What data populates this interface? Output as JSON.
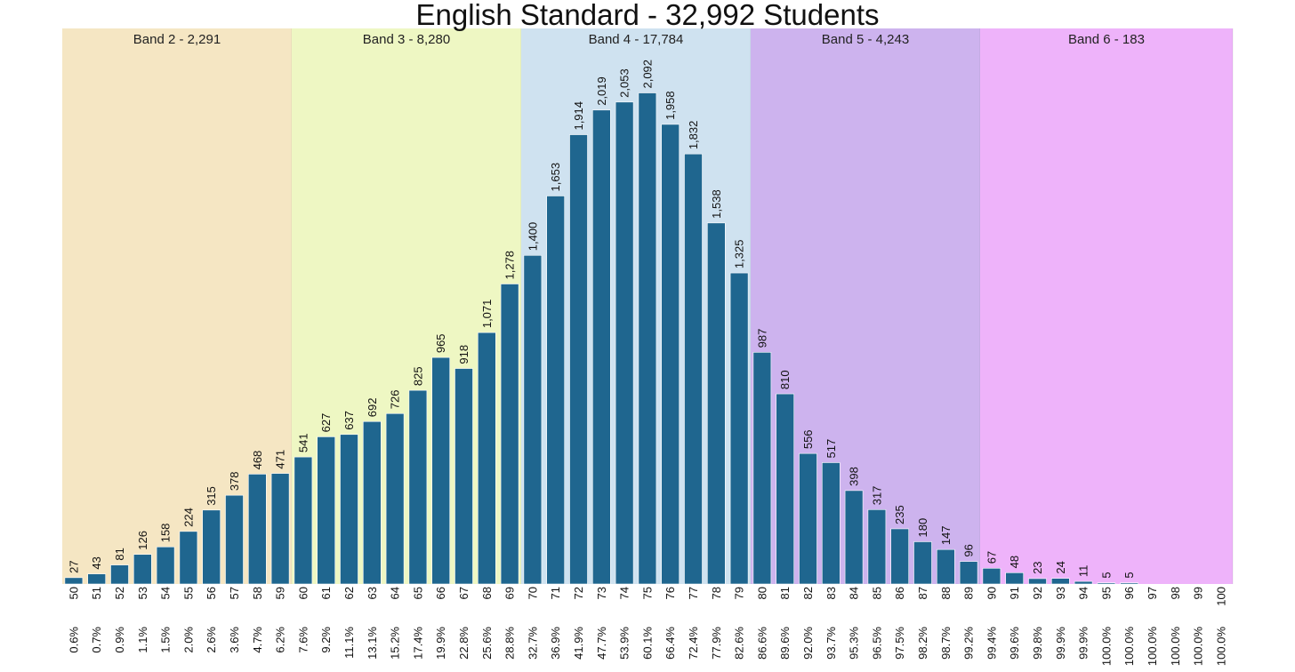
{
  "chart_data": {
    "type": "bar",
    "title": "English Standard - 32,992 Students",
    "xlabel": "",
    "ylabel": "",
    "ylim": [
      0,
      2200
    ],
    "grid": false,
    "bar_color": "#1f668f",
    "categories": [
      "50",
      "51",
      "52",
      "53",
      "54",
      "55",
      "56",
      "57",
      "58",
      "59",
      "60",
      "61",
      "62",
      "63",
      "64",
      "65",
      "66",
      "67",
      "68",
      "69",
      "70",
      "71",
      "72",
      "73",
      "74",
      "75",
      "76",
      "77",
      "78",
      "79",
      "80",
      "81",
      "82",
      "83",
      "84",
      "85",
      "86",
      "87",
      "88",
      "89",
      "90",
      "91",
      "92",
      "93",
      "94",
      "95",
      "96",
      "97",
      "98",
      "99",
      "100"
    ],
    "values": [
      27,
      43,
      81,
      126,
      158,
      224,
      315,
      378,
      468,
      471,
      541,
      627,
      637,
      692,
      726,
      825,
      965,
      918,
      1071,
      1278,
      1400,
      1653,
      1914,
      2019,
      2053,
      2092,
      1958,
      1832,
      1538,
      1325,
      987,
      810,
      556,
      517,
      398,
      317,
      235,
      180,
      147,
      96,
      67,
      48,
      23,
      24,
      11,
      5,
      5,
      0,
      0,
      0,
      0
    ],
    "value_labels": [
      "27",
      "43",
      "81",
      "126",
      "158",
      "224",
      "315",
      "378",
      "468",
      "471",
      "541",
      "627",
      "637",
      "692",
      "726",
      "825",
      "965",
      "918",
      "1,071",
      "1,278",
      "1,400",
      "1,653",
      "1,914",
      "2,019",
      "2,053",
      "2,092",
      "1,958",
      "1,832",
      "1,538",
      "1,325",
      "987",
      "810",
      "556",
      "517",
      "398",
      "317",
      "235",
      "180",
      "147",
      "96",
      "67",
      "48",
      "23",
      "24",
      "11",
      "5",
      "5",
      "",
      "",
      "",
      ""
    ],
    "cumulative_percent": [
      "0.6%",
      "0.7%",
      "0.9%",
      "1.1%",
      "1.5%",
      "2.0%",
      "2.6%",
      "3.6%",
      "4.7%",
      "6.2%",
      "7.6%",
      "9.2%",
      "11.1%",
      "13.1%",
      "15.2%",
      "17.4%",
      "19.9%",
      "22.8%",
      "25.6%",
      "28.8%",
      "32.7%",
      "36.9%",
      "41.9%",
      "47.7%",
      "53.9%",
      "60.1%",
      "66.4%",
      "72.4%",
      "77.9%",
      "82.6%",
      "86.6%",
      "89.6%",
      "92.0%",
      "93.7%",
      "95.3%",
      "96.5%",
      "97.5%",
      "98.2%",
      "98.7%",
      "99.2%",
      "99.4%",
      "99.6%",
      "99.8%",
      "99.9%",
      "99.9%",
      "100.0%",
      "100.0%",
      "100.0%",
      "100.0%",
      "100.0%",
      "100.0%"
    ],
    "bands": [
      {
        "label": "Band 2 - 2,291",
        "from": 50,
        "to": 59,
        "color": "#f5e6c3"
      },
      {
        "label": "Band 3 - 8,280",
        "from": 60,
        "to": 69,
        "color": "#eef7c3"
      },
      {
        "label": "Band 4 - 17,784",
        "from": 70,
        "to": 79,
        "color": "#cfe2f0"
      },
      {
        "label": "Band 5 - 4,243",
        "from": 80,
        "to": 89,
        "color": "#cdb3ee"
      },
      {
        "label": "Band 6 - 183",
        "from": 90,
        "to": 100,
        "color": "#eeb3fa"
      }
    ]
  }
}
